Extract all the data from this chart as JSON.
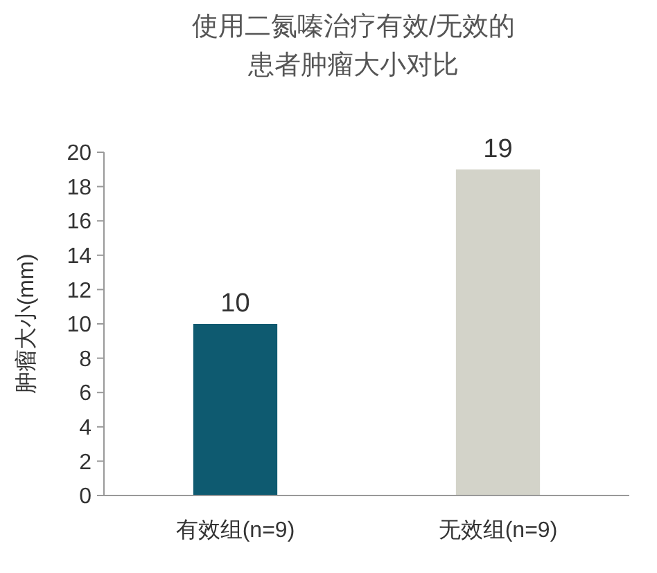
{
  "chart_data": {
    "type": "bar",
    "title": "使用二氮嗪治疗有效/无效的患者肿瘤大小对比",
    "ylabel": "肿瘤大小(mm)",
    "categories": [
      "有效组(n=9)",
      "无效组(n=9)"
    ],
    "values": [
      10,
      19
    ],
    "colors": [
      "#0e5a70",
      "#d3d3c9"
    ],
    "ylim": [
      0,
      20
    ],
    "yticks": [
      0,
      2,
      4,
      6,
      8,
      10,
      12,
      14,
      16,
      18,
      20
    ],
    "data_labels": true,
    "grid": false
  }
}
